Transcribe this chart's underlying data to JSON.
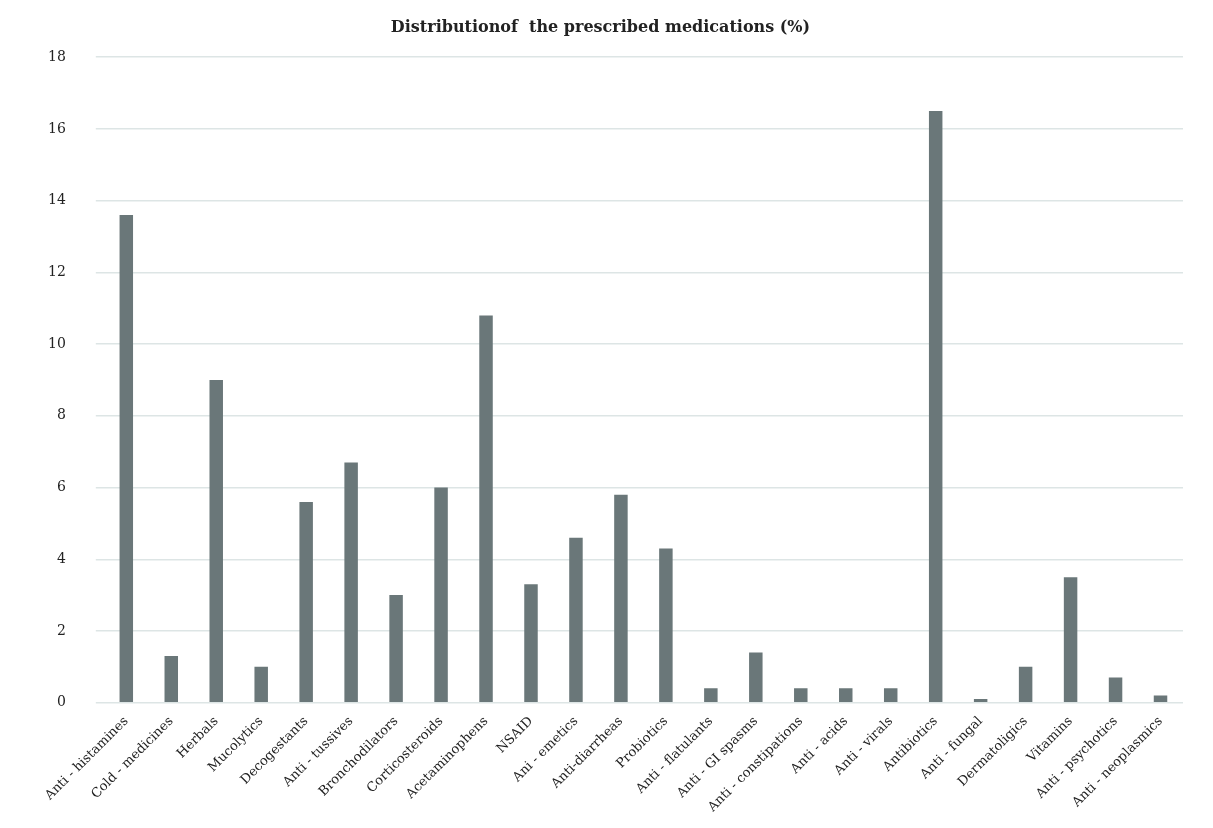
{
  "chart_data": {
    "type": "bar",
    "title": "Distributionof  the prescribed medications (%)",
    "categories": [
      "Anti - histamines",
      "Cold - medicines",
      "Herbals",
      "Mucolytics",
      "Decogestants",
      "Anti - tussives",
      "Bronchodilators",
      "Corticosteroids",
      "Acetaminophens",
      "NSAID",
      "Ani - emetics",
      "Anti-diarrheas",
      "Probiotics",
      "Anti - flatulants",
      "Anti - GI spasms",
      "Anti - constipations",
      "Anti - acids",
      "Anti - virals",
      "Antibiotics",
      "Anti - fungal",
      "Dermatoligics",
      "Vitamins",
      "Anti - psychotics",
      "Anti - neoplasmics"
    ],
    "values": [
      13.6,
      1.3,
      9.0,
      1.0,
      5.6,
      6.7,
      3.0,
      6.0,
      10.8,
      3.3,
      4.6,
      5.8,
      4.3,
      0.4,
      1.4,
      0.4,
      0.4,
      0.4,
      16.5,
      0.1,
      1.0,
      3.5,
      0.7,
      0.2
    ],
    "color": "#6a7779",
    "ylim": [
      0,
      18
    ],
    "yticks": [
      0,
      2,
      4,
      6,
      8,
      10,
      12,
      14,
      16,
      18
    ],
    "grid": "y",
    "legend": false
  }
}
